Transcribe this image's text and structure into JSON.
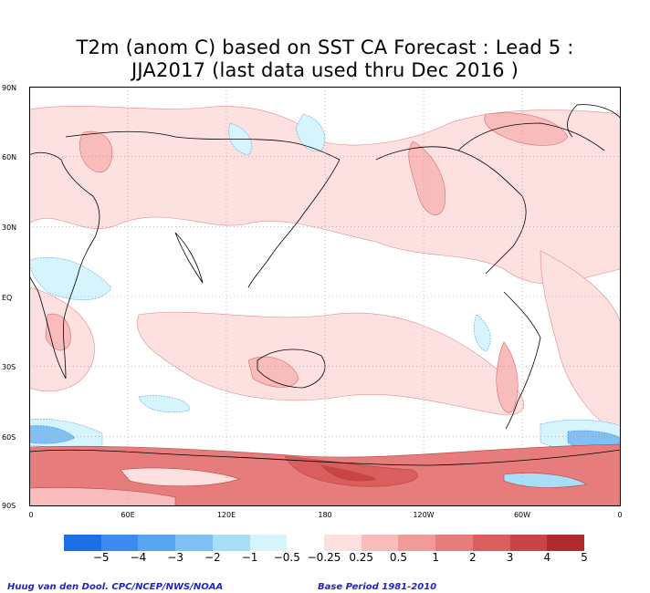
{
  "title_line1": "T2m (anom C) based on SST CA Forecast : Lead 5 :",
  "title_line2": "JJA2017 (last data used thru Dec 2016 )",
  "lat_labels": [
    "90N",
    "60N",
    "30N",
    "EQ",
    "30S",
    "60S",
    "90S"
  ],
  "lon_labels": [
    "0",
    "60E",
    "120E",
    "180",
    "120W",
    "60W",
    "0"
  ],
  "colorbar": {
    "colors": [
      "#1e6fe6",
      "#3c8cf0",
      "#5aa5f2",
      "#80c0f5",
      "#a8def8",
      "#d6f4fb",
      "#ffffff",
      "#fde0e0",
      "#f8bcbc",
      "#f19a9a",
      "#e67c7c",
      "#da5e5e",
      "#c94444",
      "#b02c2c"
    ],
    "labels": [
      "−5",
      "−4",
      "−3",
      "−2",
      "−1",
      "−0.5",
      "−0.25",
      "0.25",
      "0.5",
      "1",
      "2",
      "3",
      "4",
      "5"
    ]
  },
  "credit_left": "Huug van den Dool. CPC/NCEP/NWS/NOAA",
  "credit_right": "Base Period 1981-2010"
}
